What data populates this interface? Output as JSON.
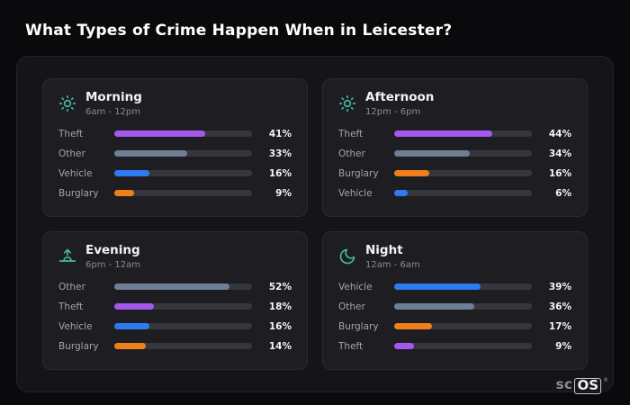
{
  "title": "What Types of Crime Happen When in Leicester?",
  "logo": {
    "prefix": "sc",
    "box": "OS",
    "reg": "®"
  },
  "colors": {
    "theft": "#a259ec",
    "other": "#6e7e94",
    "vehicle": "#2e7bf0",
    "burglary": "#ee7f1b",
    "icon_accent": "#45b8a1",
    "background": "#0a0a0c",
    "panel": "#151519",
    "card": "#1d1d22"
  },
  "chart_data": {
    "type": "bar",
    "unit": "%",
    "scale_max": 62,
    "title": "What Types of Crime Happen When in Leicester?",
    "groups": [
      {
        "name": "Morning",
        "time": "6am - 12pm",
        "icon": "morning-sun-icon",
        "bars": [
          {
            "label": "Theft",
            "value": 41,
            "display": "41%",
            "color": "#a259ec"
          },
          {
            "label": "Other",
            "value": 33,
            "display": "33%",
            "color": "#6e7e94"
          },
          {
            "label": "Vehicle",
            "value": 16,
            "display": "16%",
            "color": "#2e7bf0"
          },
          {
            "label": "Burglary",
            "value": 9,
            "display": "9%",
            "color": "#ee7f1b"
          }
        ]
      },
      {
        "name": "Afternoon",
        "time": "12pm - 6pm",
        "icon": "afternoon-sun-icon",
        "bars": [
          {
            "label": "Theft",
            "value": 44,
            "display": "44%",
            "color": "#a259ec"
          },
          {
            "label": "Other",
            "value": 34,
            "display": "34%",
            "color": "#6e7e94"
          },
          {
            "label": "Burglary",
            "value": 16,
            "display": "16%",
            "color": "#ee7f1b"
          },
          {
            "label": "Vehicle",
            "value": 6,
            "display": "6%",
            "color": "#2e7bf0"
          }
        ]
      },
      {
        "name": "Evening",
        "time": "6pm - 12am",
        "icon": "evening-sunset-icon",
        "bars": [
          {
            "label": "Other",
            "value": 52,
            "display": "52%",
            "color": "#6e7e94"
          },
          {
            "label": "Theft",
            "value": 18,
            "display": "18%",
            "color": "#a259ec"
          },
          {
            "label": "Vehicle",
            "value": 16,
            "display": "16%",
            "color": "#2e7bf0"
          },
          {
            "label": "Burglary",
            "value": 14,
            "display": "14%",
            "color": "#ee7f1b"
          }
        ]
      },
      {
        "name": "Night",
        "time": "12am - 6am",
        "icon": "night-moon-icon",
        "bars": [
          {
            "label": "Vehicle",
            "value": 39,
            "display": "39%",
            "color": "#2e7bf0"
          },
          {
            "label": "Other",
            "value": 36,
            "display": "36%",
            "color": "#6e7e94"
          },
          {
            "label": "Burglary",
            "value": 17,
            "display": "17%",
            "color": "#ee7f1b"
          },
          {
            "label": "Theft",
            "value": 9,
            "display": "9%",
            "color": "#a259ec"
          }
        ]
      }
    ]
  }
}
